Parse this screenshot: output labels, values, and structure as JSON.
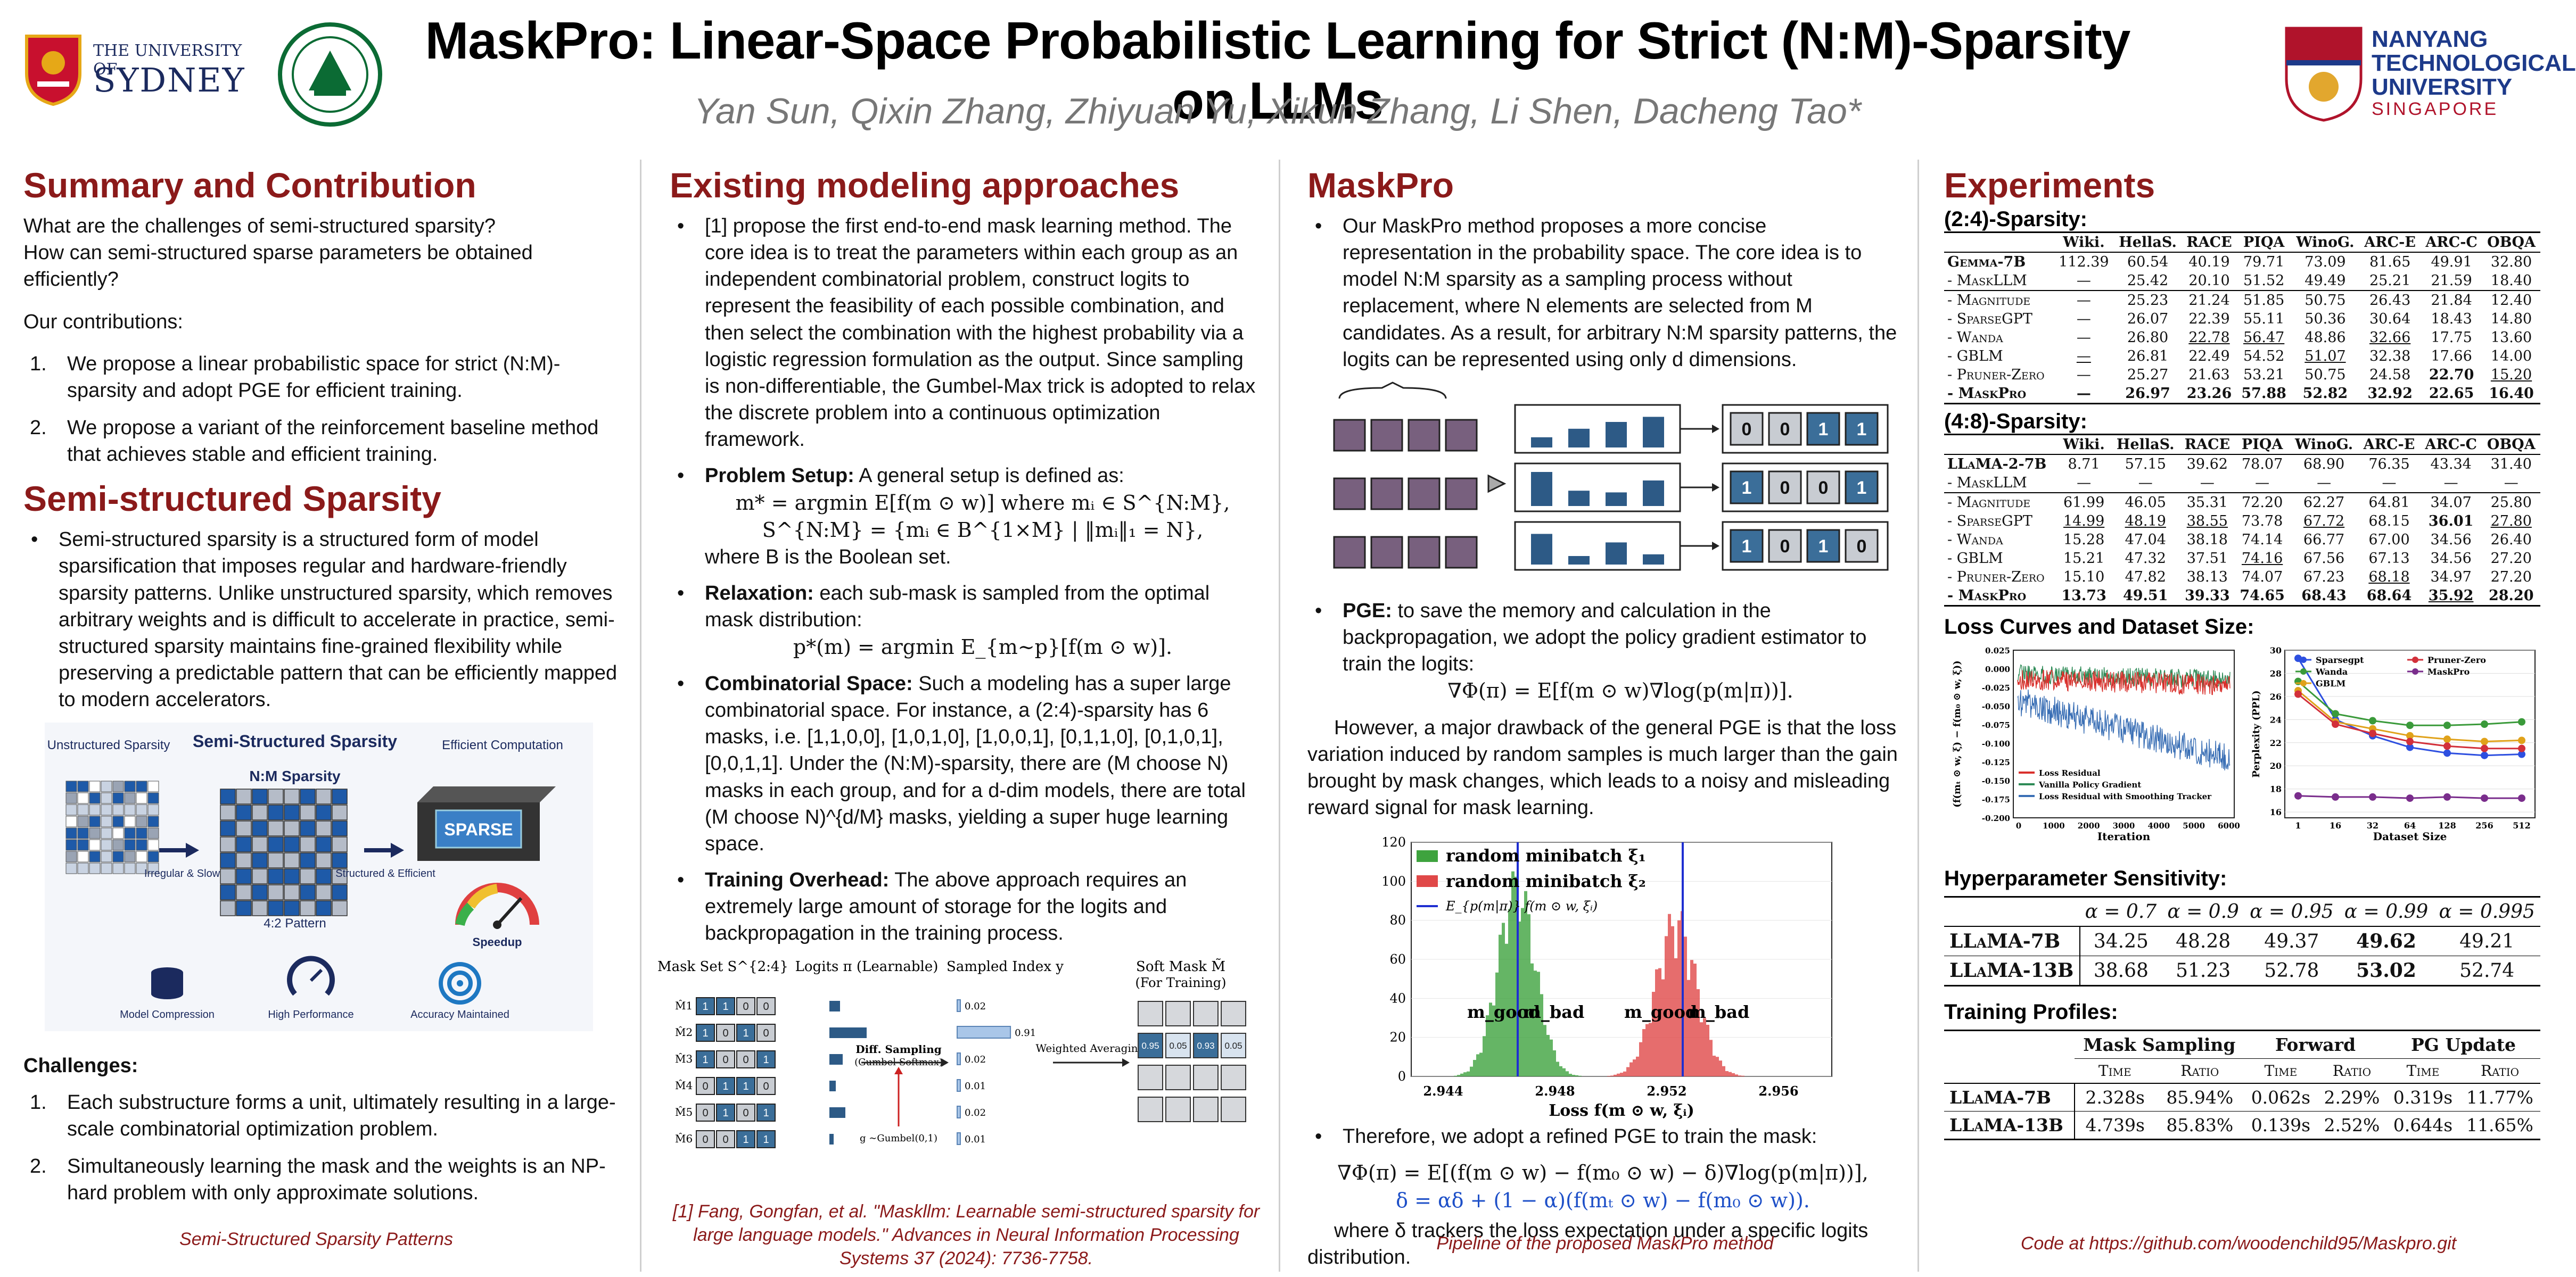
{
  "header": {
    "title": "MaskPro: Linear-Space Probabilistic Learning for Strict (N:M)-Sparsity on LLMs",
    "authors": "Yan Sun, Qixin Zhang, Zhiyuan Yu, Xikun Zhang, Li Shen, Dacheng Tao*",
    "logo_sydney_line1": "THE UNIVERSITY OF",
    "logo_sydney_line2": "SYDNEY",
    "logo_ntu_line1": "NANYANG",
    "logo_ntu_line2": "TECHNOLOGICAL",
    "logo_ntu_line3": "UNIVERSITY",
    "logo_ntu_line4": "SINGAPORE"
  },
  "col1": {
    "summary_title": "Summary and Contribution",
    "q1": "What are the challenges of semi-structured sparsity?",
    "q2": "How can semi-structured sparse parameters be obtained efficiently?",
    "contrib_intro": "Our contributions:",
    "contribs": [
      "We propose a linear probabilistic space for strict (N:M)-sparsity and adopt PGE for efficient training.",
      "We propose a variant of the reinforcement baseline method that achieves stable and efficient training."
    ],
    "semi_title": "Semi-structured Sparsity",
    "semi_text": "Semi-structured sparsity is a structured form of model sparsification that imposes regular and hardware-friendly sparsity patterns. Unlike unstructured sparsity, which removes arbitrary weights and is difficult to accelerate in practice, semi-structured sparsity maintains fine-grained flexibility while preserving a predictable pattern that can be efficiently mapped to modern accelerators.",
    "fig": {
      "label_unstructured": "Unstructured Sparsity",
      "label_semi": "Semi-Structured Sparsity",
      "label_eff": "Efficient Computation",
      "label_nm": "N:M Sparsity",
      "label_irregular": "Irregular & Slow",
      "label_structured": "Structured & Efficient",
      "label_pattern": "4:2 Pattern",
      "label_sparse": "SPARSE",
      "label_speedup": "Speedup",
      "label_comp": "Model Compression",
      "label_perf": "High Performance",
      "label_acc": "Accuracy Maintained"
    },
    "challenges_title": "Challenges:",
    "challenges": [
      "Each substructure forms a unit, ultimately resulting in a large-scale combinatorial optimization problem.",
      "Simultaneously learning the mask and the weights is an NP-hard problem with only approximate solutions."
    ],
    "caption": "Semi-Structured Sparsity Patterns"
  },
  "col2": {
    "title": "Existing modeling approaches",
    "b1": "[1] propose the first end-to-end mask learning method. The core idea is to treat the parameters within each group as an independent combinatorial problem, construct logits to represent the feasibility of each possible combination, and then select the combination with the highest probability via a logistic regression formulation as the output. Since sampling is non-differentiable, the Gumbel-Max trick is adopted to relax the discrete problem into a continuous optimization framework.",
    "b2_head": "Problem Setup:",
    "b2_text": "A general setup is defined as:",
    "b2_eq1": "m* = argmin E[f(m ⊙ w)]  where mᵢ ∈ S^{N:M},",
    "b2_eq2": "S^{N:M} = {mᵢ ∈ B^{1×M} | ‖mᵢ‖₁ = N},",
    "b2_tail": "where B is the Boolean set.",
    "b3_head": "Relaxation:",
    "b3_text": "each sub-mask is sampled from the optimal mask distribution:",
    "b3_eq": "p*(m) = argmin E_{m∼p}[f(m ⊙ w)].",
    "b4_head": "Combinatorial Space:",
    "b4_text": "Such a modeling has a super large combinatorial space. For instance, a (2:4)-sparsity has 6 masks, i.e. [1,1,0,0], [1,0,1,0], [1,0,0,1], [0,1,1,0], [0,1,0,1], [0,0,1,1]. Under the (N:M)-sparsity, there are (M choose N) masks in each group, and for a d-dim models, there are total (M choose N)^{d/M} masks, yielding a super huge learning space.",
    "b5_head": "Training Overhead:",
    "b5_text": "The above approach requires an extremely large amount of storage for the logits and backpropagation in the training process.",
    "fig": {
      "h_maskset": "Mask Set S^{2:4}",
      "h_logits": "Logits π (Learnable)",
      "h_sampled": "Sampled Index y",
      "h_soft": "Soft Mask M̃",
      "h_soft2": "(For Training)",
      "diff1": "Diff. Sampling",
      "diff2": "(Gumbel Softmax)",
      "gumbel": "g ∼Gumbel(0,1)",
      "weighted": "Weighted Averaging",
      "probs": [
        "0.02",
        "0.91",
        "0.02",
        "0.01",
        "0.02",
        "0.01"
      ],
      "soft_vals": [
        "0.95",
        "0.05",
        "0.93",
        "0.05"
      ]
    },
    "ref": "[1] Fang, Gongfan, et al. \"Maskllm: Learnable semi-structured sparsity for large language models.\" Advances in Neural Information Processing Systems 37 (2024): 7736-7758."
  },
  "col3": {
    "title": "MaskPro",
    "b1": "Our MaskPro method proposes a more concise representation in the probability space. The core idea is to model N:M sparsity as a sampling process without replacement, where N elements are selected from M candidates. As a result, for arbitrary N:M sparsity patterns, the logits can be represented using only d dimensions.",
    "masks": [
      [
        "0",
        "0",
        "1",
        "1"
      ],
      [
        "1",
        "0",
        "0",
        "1"
      ],
      [
        "1",
        "0",
        "1",
        "0"
      ]
    ],
    "b2_head": "PGE:",
    "b2_text": "to save the memory and calculation in the backpropagation, we adopt the policy gradient estimator to train the logits:",
    "b2_eq": "∇Φ(π) = E[f(m ⊙ w)∇log(p(m|π))].",
    "p1": "However, a major drawback of the general PGE is that the loss variation induced by random samples is much larger than the gain brought by mask changes, which leads to a noisy and misleading reward signal for mask learning.",
    "hist": {
      "legend1": "random minibatch ξ₁",
      "legend2": "random minibatch ξ₂",
      "legend3": "E_{p(m|π)} f(m ⊙ w, ξᵢ)",
      "yticks": [
        "120",
        "100",
        "80",
        "60",
        "40",
        "20",
        "0"
      ],
      "xticks": [
        "2.944",
        "2.948",
        "2.952",
        "2.956"
      ],
      "xlabel": "Loss f(m ⊙ w, ξᵢ)",
      "m_good": "m_good",
      "m_bad": "m_bad"
    },
    "b3_text": "Therefore, we adopt a refined PGE to train the mask:",
    "b3_eq1": "∇Φ(π) = E[(f(m ⊙ w) − f(m₀ ⊙ w) − δ)∇log(p(m|π))],",
    "b3_eq2": "δ = αδ + (1 − α)(f(mₜ ⊙ w) − f(m₀ ⊙ w)).",
    "p2": "where δ trackers the loss expectation under a specific logits distribution.",
    "caption": "Pipeline of the proposed MaskPro method"
  },
  "col4": {
    "title": "Experiments",
    "t1_title": "(2:4)-Sparsity:",
    "t1_cols": [
      "",
      "Wiki.",
      "HellaS.",
      "RACE",
      "PIQA",
      "WinoG.",
      "ARC-E",
      "ARC-C",
      "OBQA"
    ],
    "t1_rows": [
      [
        "Gemma-7B",
        "112.39",
        "60.54",
        "40.19",
        "79.71",
        "73.09",
        "81.65",
        "49.91",
        "32.80"
      ],
      [
        "- MaskLLM",
        "—",
        "25.42",
        "20.10",
        "51.52",
        "49.49",
        "25.21",
        "21.59",
        "18.40"
      ],
      [
        "- Magnitude",
        "—",
        "25.23",
        "21.24",
        "51.85",
        "50.75",
        "26.43",
        "21.84",
        "12.40"
      ],
      [
        "- SparseGPT",
        "—",
        "26.07",
        "22.39",
        "55.11",
        "50.36",
        "30.64",
        "18.43",
        "14.80"
      ],
      [
        "- Wanda",
        "—",
        "26.80",
        "22.78",
        "56.47",
        "48.86",
        "32.66",
        "17.75",
        "13.60"
      ],
      [
        "- GBLM",
        "—",
        "26.81",
        "22.49",
        "54.52",
        "51.07",
        "32.38",
        "17.66",
        "14.00"
      ],
      [
        "- Pruner-Zero",
        "—",
        "25.27",
        "21.63",
        "53.21",
        "50.75",
        "24.58",
        "22.70",
        "15.20"
      ],
      [
        "- MaskPro",
        "—",
        "26.97",
        "23.26",
        "57.88",
        "52.82",
        "32.92",
        "22.65",
        "16.40"
      ]
    ],
    "t2_title": "(4:8)-Sparsity:",
    "t2_rows": [
      [
        "LLaMA-2-7B",
        "8.71",
        "57.15",
        "39.62",
        "78.07",
        "68.90",
        "76.35",
        "43.34",
        "31.40"
      ],
      [
        "- MaskLLM",
        "—",
        "—",
        "—",
        "—",
        "—",
        "—",
        "—",
        "—"
      ],
      [
        "- Magnitude",
        "61.99",
        "46.05",
        "35.31",
        "72.20",
        "62.27",
        "64.81",
        "34.07",
        "25.80"
      ],
      [
        "- SparseGPT",
        "14.99",
        "48.19",
        "38.55",
        "73.78",
        "67.72",
        "68.15",
        "36.01",
        "27.80"
      ],
      [
        "- Wanda",
        "15.28",
        "47.04",
        "38.18",
        "74.14",
        "66.77",
        "67.00",
        "34.56",
        "26.40"
      ],
      [
        "- GBLM",
        "15.21",
        "47.32",
        "37.51",
        "74.16",
        "67.56",
        "67.13",
        "34.56",
        "27.20"
      ],
      [
        "- Pruner-Zero",
        "15.10",
        "47.82",
        "38.13",
        "74.07",
        "67.23",
        "68.18",
        "34.97",
        "27.20"
      ],
      [
        "- MaskPro",
        "13.73",
        "49.51",
        "39.33",
        "74.65",
        "68.43",
        "68.64",
        "35.92",
        "28.20"
      ]
    ],
    "loss_title": "Loss Curves and Dataset Size:",
    "loss_chart": {
      "ylabel": "(f(mₜ ⊙ w, ξ) − f(m₀ ⊙ w, ξ))",
      "xlabel": "Iteration",
      "yticks": [
        "0.025",
        "0.000",
        "-0.025",
        "-0.050",
        "-0.075",
        "-0.100",
        "-0.125",
        "-0.150",
        "-0.175",
        "-0.200"
      ],
      "xticks": [
        "0",
        "1000",
        "2000",
        "3000",
        "4000",
        "5000",
        "6000"
      ],
      "legend": [
        "Loss Residual",
        "Vanilla Policy Gradient",
        "Loss Residual with Smoothing Tracker"
      ],
      "colors": [
        "#d9302c",
        "#2e8b57",
        "#3a6fb5"
      ]
    },
    "ppl_chart": {
      "ylabel": "Perplexity (PPL)",
      "xlabel": "Dataset Size",
      "x": [
        "1",
        "16",
        "32",
        "64",
        "128",
        "256",
        "512"
      ],
      "yticks": [
        "30",
        "28",
        "26",
        "24",
        "22",
        "20",
        "18",
        "16"
      ],
      "ylim": [
        15.5,
        30
      ],
      "series": [
        {
          "name": "Sparsegpt",
          "color": "#2d4fe0",
          "values": [
            29.3,
            24.0,
            22.6,
            21.6,
            21.1,
            20.9,
            21.0
          ]
        },
        {
          "name": "Wanda",
          "color": "#3a9a3a",
          "values": [
            27.3,
            24.5,
            23.9,
            23.5,
            23.5,
            23.6,
            23.8
          ]
        },
        {
          "name": "GBLM",
          "color": "#e0a21a",
          "values": [
            26.5,
            23.8,
            23.2,
            22.6,
            22.3,
            22.1,
            22.2
          ]
        },
        {
          "name": "Pruner-Zero",
          "color": "#d2303a",
          "values": [
            26.2,
            23.6,
            22.8,
            22.1,
            21.7,
            21.5,
            21.5
          ]
        },
        {
          "name": "MaskPro",
          "color": "#7a2d8c",
          "values": [
            17.4,
            17.3,
            17.3,
            17.2,
            17.3,
            17.2,
            17.2
          ]
        }
      ]
    },
    "hp_title": "Hyperparameter Sensitivity:",
    "hp_cols": [
      "",
      "α = 0.7",
      "α = 0.9",
      "α = 0.95",
      "α = 0.99",
      "α = 0.995"
    ],
    "hp_rows": [
      [
        "LLaMA-7B",
        "34.25",
        "48.28",
        "49.37",
        "49.62",
        "49.21"
      ],
      [
        "LLaMA-13B",
        "38.68",
        "51.23",
        "52.78",
        "53.02",
        "52.74"
      ]
    ],
    "tp_title": "Training Profiles:",
    "tp_groups": [
      "Mask Sampling",
      "Forward",
      "PG Update"
    ],
    "tp_sub": [
      "Time",
      "Ratio",
      "Time",
      "Ratio",
      "Time",
      "Ratio"
    ],
    "tp_rows": [
      [
        "LLaMA-7B",
        "2.328s",
        "85.94%",
        "0.062s",
        "2.29%",
        "0.319s",
        "11.77%"
      ],
      [
        "LLaMA-13B",
        "4.739s",
        "85.83%",
        "0.139s",
        "2.52%",
        "0.644s",
        "11.65%"
      ]
    ],
    "code": "Code at https://github.com/woodenchild95/Maskpro.git"
  },
  "chart_data": [
    {
      "type": "line",
      "title": "",
      "xlabel": "Dataset Size",
      "ylabel": "Perplexity (PPL)",
      "categories": [
        "1",
        "16",
        "32",
        "64",
        "128",
        "256",
        "512"
      ],
      "ylim": [
        15.5,
        30
      ],
      "series": [
        {
          "name": "Sparsegpt",
          "values": [
            29.3,
            24.0,
            22.6,
            21.6,
            21.1,
            20.9,
            21.0
          ]
        },
        {
          "name": "Wanda",
          "values": [
            27.3,
            24.5,
            23.9,
            23.5,
            23.5,
            23.6,
            23.8
          ]
        },
        {
          "name": "GBLM",
          "values": [
            26.5,
            23.8,
            23.2,
            22.6,
            22.3,
            22.1,
            22.2
          ]
        },
        {
          "name": "Pruner-Zero",
          "values": [
            26.2,
            23.6,
            22.8,
            22.1,
            21.7,
            21.5,
            21.5
          ]
        },
        {
          "name": "MaskPro",
          "values": [
            17.4,
            17.3,
            17.3,
            17.2,
            17.3,
            17.2,
            17.2
          ]
        }
      ]
    }
  ]
}
